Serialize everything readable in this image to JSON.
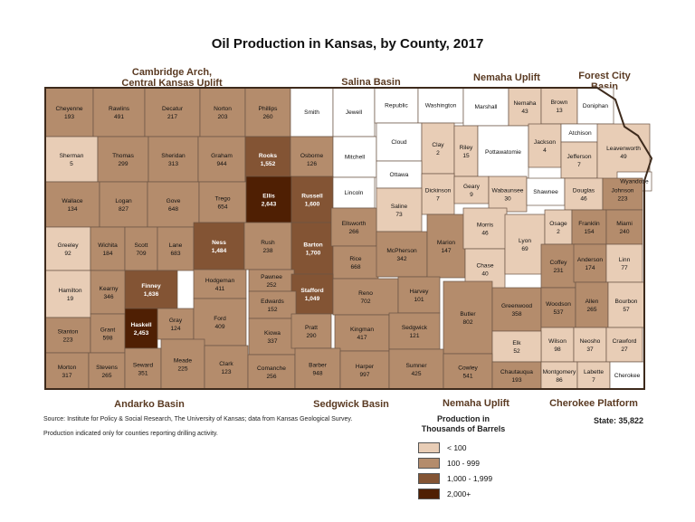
{
  "title": "Oil Production in Kansas, by County, 2017",
  "regions": {
    "cambridge": "Cambridge Arch, Central Kansas Uplift",
    "cambridge_l1": "Cambridge Arch,",
    "cambridge_l2": "Central Kansas Uplift",
    "salina": "Salina Basin",
    "nemaha_top": "Nemaha Uplift",
    "forest_l1": "Forest City",
    "forest_l2": "Basin",
    "andarko": "Andarko Basin",
    "sedgwick": "Sedgwick Basin",
    "nemaha_bottom": "Nemaha Uplift",
    "cherokee": "Cherokee Platform"
  },
  "legend": {
    "title_l1": "Production in",
    "title_l2": "Thousands of Barrels",
    "items": [
      {
        "label": "< 100",
        "color": "#e8cdb6"
      },
      {
        "label": "100 - 999",
        "color": "#b48c6c"
      },
      {
        "label": "1,000 - 1,999",
        "color": "#835434"
      },
      {
        "label": "2,000+",
        "color": "#4f1f03"
      }
    ]
  },
  "state_total": "State: 35,822",
  "source": "Source: Institute for Policy & Social Research, The University of Kansas; data from Kansas Geological Survey.",
  "note": "Production indicated only for counties reporting drilling activity.",
  "colors": {
    "none": "#ffffff",
    "low": "#e8cdb6",
    "mid": "#b48c6c",
    "high": "#835434",
    "top": "#4f1f03",
    "border": "#3d2a1c"
  },
  "counties": [
    {
      "name": "Cheyenne",
      "value": "193",
      "value_num": 193
    },
    {
      "name": "Rawlins",
      "value": "491",
      "value_num": 491
    },
    {
      "name": "Decatur",
      "value": "217",
      "value_num": 217
    },
    {
      "name": "Norton",
      "value": "203",
      "value_num": 203
    },
    {
      "name": "Phillips",
      "value": "260",
      "value_num": 260
    },
    {
      "name": "Smith",
      "value": "",
      "value_num": null
    },
    {
      "name": "Jewell",
      "value": "",
      "value_num": null
    },
    {
      "name": "Republic",
      "value": "",
      "value_num": null
    },
    {
      "name": "Washington",
      "value": "",
      "value_num": null
    },
    {
      "name": "Marshall",
      "value": "",
      "value_num": null
    },
    {
      "name": "Nemaha",
      "value": "43",
      "value_num": 43
    },
    {
      "name": "Brown",
      "value": "13",
      "value_num": 13
    },
    {
      "name": "Doniphan",
      "value": "",
      "value_num": null
    },
    {
      "name": "Sherman",
      "value": "5",
      "value_num": 5
    },
    {
      "name": "Thomas",
      "value": "299",
      "value_num": 299
    },
    {
      "name": "Sheridan",
      "value": "313",
      "value_num": 313
    },
    {
      "name": "Graham",
      "value": "944",
      "value_num": 944
    },
    {
      "name": "Rooks",
      "value": "1,552",
      "value_num": 1552
    },
    {
      "name": "Osborne",
      "value": "126",
      "value_num": 126
    },
    {
      "name": "Mitchell",
      "value": "",
      "value_num": null
    },
    {
      "name": "Cloud",
      "value": "",
      "value_num": null
    },
    {
      "name": "Clay",
      "value": "2",
      "value_num": 2
    },
    {
      "name": "Riley",
      "value": "15",
      "value_num": 15
    },
    {
      "name": "Pottawatomie",
      "value": "",
      "value_num": null
    },
    {
      "name": "Jackson",
      "value": "4",
      "value_num": 4
    },
    {
      "name": "Atchison",
      "value": "",
      "value_num": null
    },
    {
      "name": "Jefferson",
      "value": "7",
      "value_num": 7
    },
    {
      "name": "Leavenworth",
      "value": "49",
      "value_num": 49
    },
    {
      "name": "Wyandotte",
      "value": "",
      "value_num": null
    },
    {
      "name": "Wallace",
      "value": "134",
      "value_num": 134
    },
    {
      "name": "Logan",
      "value": "827",
      "value_num": 827
    },
    {
      "name": "Gove",
      "value": "648",
      "value_num": 648
    },
    {
      "name": "Trego",
      "value": "654",
      "value_num": 654
    },
    {
      "name": "Ellis",
      "value": "2,643",
      "value_num": 2643
    },
    {
      "name": "Russell",
      "value": "1,600",
      "value_num": 1600
    },
    {
      "name": "Lincoln",
      "value": "",
      "value_num": null
    },
    {
      "name": "Ottawa",
      "value": "",
      "value_num": null
    },
    {
      "name": "Dickinson",
      "value": "7",
      "value_num": 7
    },
    {
      "name": "Geary",
      "value": "9",
      "value_num": 9
    },
    {
      "name": "Wabaunsee",
      "value": "30",
      "value_num": 30
    },
    {
      "name": "Shawnee",
      "value": "",
      "value_num": null
    },
    {
      "name": "Douglas",
      "value": "46",
      "value_num": 46
    },
    {
      "name": "Johnson",
      "value": "223",
      "value_num": 223
    },
    {
      "name": "Saline",
      "value": "73",
      "value_num": 73
    },
    {
      "name": "Greeley",
      "value": "92",
      "value_num": 92
    },
    {
      "name": "Wichita",
      "value": "184",
      "value_num": 184
    },
    {
      "name": "Scott",
      "value": "709",
      "value_num": 709
    },
    {
      "name": "Lane",
      "value": "683",
      "value_num": 683
    },
    {
      "name": "Ness",
      "value": "1,484",
      "value_num": 1484
    },
    {
      "name": "Rush",
      "value": "238",
      "value_num": 238
    },
    {
      "name": "Barton",
      "value": "1,700",
      "value_num": 1700
    },
    {
      "name": "Ellsworth",
      "value": "266",
      "value_num": 266
    },
    {
      "name": "Rice",
      "value": "668",
      "value_num": 668
    },
    {
      "name": "McPherson",
      "value": "342",
      "value_num": 342
    },
    {
      "name": "Marion",
      "value": "147",
      "value_num": 147
    },
    {
      "name": "Morris",
      "value": "46",
      "value_num": 46
    },
    {
      "name": "Chase",
      "value": "40",
      "value_num": 40
    },
    {
      "name": "Lyon",
      "value": "69",
      "value_num": 69
    },
    {
      "name": "Osage",
      "value": "2",
      "value_num": 2
    },
    {
      "name": "Franklin",
      "value": "154",
      "value_num": 154
    },
    {
      "name": "Miami",
      "value": "240",
      "value_num": 240
    },
    {
      "name": "Hamilton",
      "value": "19",
      "value_num": 19
    },
    {
      "name": "Kearny",
      "value": "346",
      "value_num": 346
    },
    {
      "name": "Finney",
      "value": "1,636",
      "value_num": 1636
    },
    {
      "name": "Hodgeman",
      "value": "411",
      "value_num": 411
    },
    {
      "name": "Pawnee",
      "value": "252",
      "value_num": 252
    },
    {
      "name": "Stafford",
      "value": "1,049",
      "value_num": 1049
    },
    {
      "name": "Reno",
      "value": "702",
      "value_num": 702
    },
    {
      "name": "Harvey",
      "value": "101",
      "value_num": 101
    },
    {
      "name": "Coffey",
      "value": "231",
      "value_num": 231
    },
    {
      "name": "Anderson",
      "value": "174",
      "value_num": 174
    },
    {
      "name": "Linn",
      "value": "77",
      "value_num": 77
    },
    {
      "name": "Edwards",
      "value": "152",
      "value_num": 152
    },
    {
      "name": "Gray",
      "value": "124",
      "value_num": 124
    },
    {
      "name": "Ford",
      "value": "409",
      "value_num": 409
    },
    {
      "name": "Kiowa",
      "value": "337",
      "value_num": 337
    },
    {
      "name": "Pratt",
      "value": "290",
      "value_num": 290
    },
    {
      "name": "Kingman",
      "value": "417",
      "value_num": 417
    },
    {
      "name": "Sedgwick",
      "value": "121",
      "value_num": 121
    },
    {
      "name": "Butler",
      "value": "802",
      "value_num": 802
    },
    {
      "name": "Greenwood",
      "value": "358",
      "value_num": 358
    },
    {
      "name": "Woodson",
      "value": "537",
      "value_num": 537
    },
    {
      "name": "Allen",
      "value": "265",
      "value_num": 265
    },
    {
      "name": "Bourbon",
      "value": "57",
      "value_num": 57
    },
    {
      "name": "Stanton",
      "value": "223",
      "value_num": 223
    },
    {
      "name": "Grant",
      "value": "598",
      "value_num": 598
    },
    {
      "name": "Haskell",
      "value": "2,453",
      "value_num": 2453
    },
    {
      "name": "Wilson",
      "value": "98",
      "value_num": 98
    },
    {
      "name": "Neosho",
      "value": "37",
      "value_num": 37
    },
    {
      "name": "Crawford",
      "value": "27",
      "value_num": 27
    },
    {
      "name": "Elk",
      "value": "52",
      "value_num": 52
    },
    {
      "name": "Morton",
      "value": "317",
      "value_num": 317
    },
    {
      "name": "Stevens",
      "value": "265",
      "value_num": 265
    },
    {
      "name": "Seward",
      "value": "351",
      "value_num": 351
    },
    {
      "name": "Meade",
      "value": "225",
      "value_num": 225
    },
    {
      "name": "Clark",
      "value": "123",
      "value_num": 123
    },
    {
      "name": "Comanche",
      "value": "256",
      "value_num": 256
    },
    {
      "name": "Barber",
      "value": "948",
      "value_num": 948
    },
    {
      "name": "Harper",
      "value": "997",
      "value_num": 997
    },
    {
      "name": "Sumner",
      "value": "425",
      "value_num": 425
    },
    {
      "name": "Cowley",
      "value": "541",
      "value_num": 541
    },
    {
      "name": "Chautauqua",
      "value": "193",
      "value_num": 193
    },
    {
      "name": "Montgomery",
      "value": "86",
      "value_num": 86
    },
    {
      "name": "Labette",
      "value": "7",
      "value_num": 7
    },
    {
      "name": "Cherokee",
      "value": "",
      "value_num": null
    }
  ]
}
